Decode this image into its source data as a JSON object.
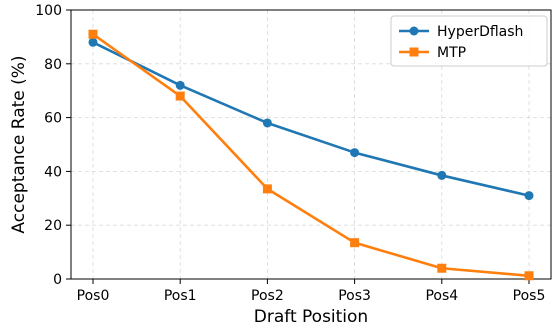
{
  "chart_data": {
    "type": "line",
    "title": "",
    "xlabel": "Draft Position",
    "ylabel": "Acceptance Rate (%)",
    "categories": [
      "Pos0",
      "Pos1",
      "Pos2",
      "Pos3",
      "Pos4",
      "Pos5"
    ],
    "ylim": [
      0,
      100
    ],
    "yticks": [
      0,
      20,
      40,
      60,
      80,
      100
    ],
    "grid": true,
    "legend_position": "top-right",
    "series": [
      {
        "name": "HyperDflash",
        "values": [
          88,
          72,
          58,
          47,
          38.5,
          31
        ],
        "color": "#1f77b4",
        "marker": "circle"
      },
      {
        "name": "MTP",
        "values": [
          91,
          68,
          33.5,
          13.5,
          4,
          1.2
        ],
        "color": "#ff7f0e",
        "marker": "square"
      }
    ]
  }
}
